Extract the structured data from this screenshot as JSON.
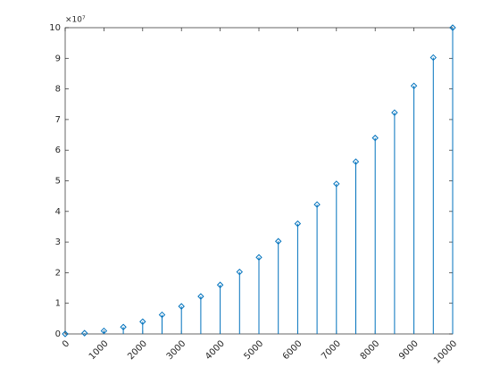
{
  "chart_data": {
    "type": "stem",
    "exponent_label": "×10⁷",
    "x": [
      0,
      500,
      1000,
      1500,
      2000,
      2500,
      3000,
      3500,
      4000,
      4500,
      5000,
      5500,
      6000,
      6500,
      7000,
      7500,
      8000,
      8500,
      9000,
      9500,
      10000
    ],
    "values": [
      0,
      0.025,
      0.1,
      0.225,
      0.4,
      0.625,
      0.9,
      1.225,
      1.6,
      2.025,
      2.5,
      3.025,
      3.6,
      4.225,
      4.9,
      5.625,
      6.4,
      7.225,
      8.1,
      9.025,
      10
    ],
    "color": "#0072bd",
    "xlim": [
      0,
      10000
    ],
    "xticks": [
      0,
      1000,
      2000,
      3000,
      4000,
      5000,
      6000,
      7000,
      8000,
      9000,
      10000
    ],
    "ylim": [
      0,
      10
    ],
    "yticks": [
      0,
      1,
      2,
      3,
      4,
      5,
      6,
      7,
      8,
      9,
      10
    ],
    "grid": false
  }
}
